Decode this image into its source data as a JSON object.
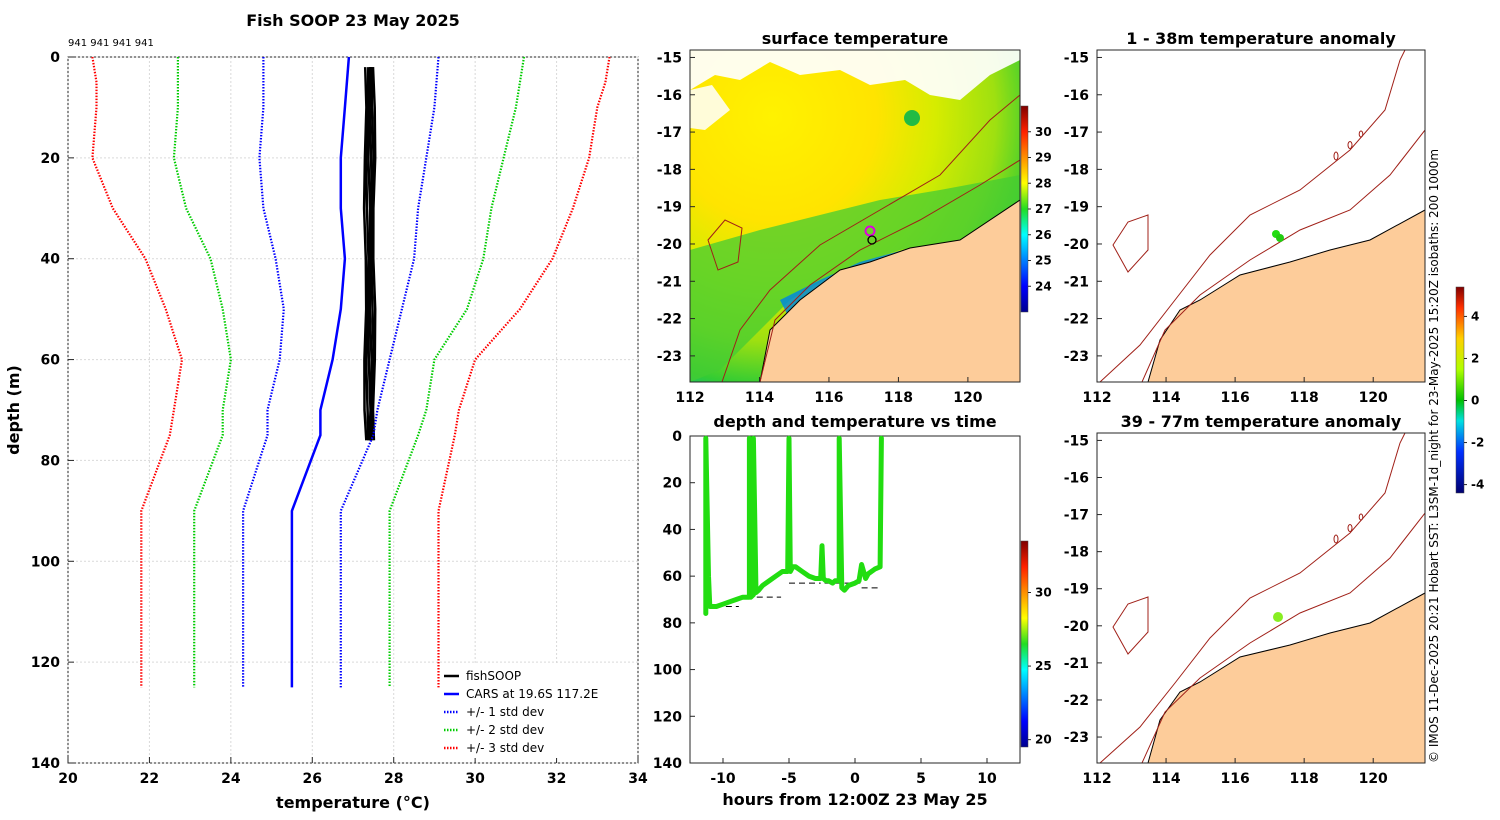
{
  "chart_data": [
    {
      "id": "profile",
      "type": "line",
      "title": "Fish SOOP 23 May 2025",
      "top_label": "941 941 941 941",
      "xlabel": "temperature (°C)",
      "ylabel": "depth (m)",
      "xlim": [
        20,
        34
      ],
      "ylim": [
        0,
        140
      ],
      "y_inverted": true,
      "xticks": [
        20,
        22,
        24,
        26,
        28,
        30,
        32,
        34
      ],
      "yticks": [
        0,
        20,
        40,
        60,
        80,
        100,
        120,
        140
      ],
      "grid": true,
      "legend_position": "bottom-right",
      "series": [
        {
          "name": "fishSOOP",
          "color": "#000000",
          "style": "solid",
          "depth": [
            2,
            10,
            20,
            30,
            40,
            50,
            60,
            70,
            76
          ],
          "temp": [
            27.4,
            27.4,
            27.4,
            27.4,
            27.4,
            27.4,
            27.4,
            27.4,
            27.4
          ]
        },
        {
          "name": "CARS at 19.6S 117.2E",
          "color": "#0000ff",
          "style": "solid",
          "depth": [
            0,
            10,
            20,
            30,
            40,
            50,
            60,
            70,
            75,
            90,
            125
          ],
          "temp": [
            26.9,
            26.8,
            26.7,
            26.7,
            26.8,
            26.7,
            26.5,
            26.2,
            26.2,
            25.5,
            25.5
          ]
        },
        {
          "name": "+/- 1 std dev",
          "color": "#0000ff",
          "style": "dotted",
          "band": true,
          "depth": [
            0,
            10,
            20,
            30,
            40,
            50,
            60,
            70,
            75,
            90,
            125
          ],
          "lower": [
            24.8,
            24.8,
            24.7,
            24.8,
            25.1,
            25.3,
            25.2,
            24.9,
            24.9,
            24.3,
            24.3
          ],
          "upper": [
            29.1,
            29.0,
            28.8,
            28.6,
            28.5,
            28.2,
            27.9,
            27.6,
            27.5,
            26.7,
            26.7
          ]
        },
        {
          "name": "+/- 2 std dev",
          "color": "#00cc00",
          "style": "dotted",
          "band": true,
          "depth": [
            0,
            10,
            20,
            30,
            40,
            50,
            60,
            70,
            75,
            90,
            125
          ],
          "lower": [
            22.7,
            22.7,
            22.6,
            22.9,
            23.5,
            23.8,
            24.0,
            23.8,
            23.8,
            23.1,
            23.1
          ],
          "upper": [
            31.2,
            31.0,
            30.7,
            30.4,
            30.2,
            29.8,
            29.0,
            28.8,
            28.6,
            27.9,
            27.9
          ]
        },
        {
          "name": "+/- 3 std dev",
          "color": "#ff0000",
          "style": "dotted",
          "band": true,
          "depth": [
            0,
            5,
            10,
            20,
            30,
            40,
            50,
            60,
            70,
            75,
            90,
            125
          ],
          "lower": [
            20.6,
            20.7,
            20.7,
            20.6,
            21.1,
            21.9,
            22.4,
            22.8,
            22.6,
            22.5,
            21.8,
            21.8
          ],
          "upper": [
            33.3,
            33.2,
            33.0,
            32.8,
            32.4,
            31.9,
            31.1,
            30.0,
            29.6,
            29.5,
            29.1,
            29.1
          ]
        }
      ]
    },
    {
      "id": "surface",
      "type": "heatmap",
      "title": "surface temperature",
      "xticks": [
        112,
        114,
        116,
        118,
        120
      ],
      "yticks": [
        -15,
        -16,
        -17,
        -18,
        -19,
        -20,
        -21,
        -22,
        -23
      ],
      "xlim": [
        112,
        121.5
      ],
      "ylim": [
        -23.7,
        -14.8
      ],
      "colorbar": {
        "min": 23,
        "max": 31,
        "ticks": [
          24,
          25,
          26,
          27,
          28,
          29,
          30
        ]
      },
      "markers": [
        {
          "lon": 117.2,
          "lat": -19.6,
          "color": "#e000e0"
        },
        {
          "lon": 117.25,
          "lat": -19.85,
          "color": "#000000"
        }
      ]
    },
    {
      "id": "depth_time",
      "type": "line",
      "title": "depth and temperature vs time",
      "xlabel": "hours from 12:00Z 23 May 25",
      "xlim": [
        -12.5,
        12.5
      ],
      "ylim": [
        0,
        140
      ],
      "y_inverted": true,
      "xticks": [
        -10,
        -5,
        0,
        5,
        10
      ],
      "yticks": [
        0,
        20,
        40,
        60,
        80,
        100,
        120,
        140
      ],
      "colorbar": {
        "min": 19.5,
        "max": 33.5,
        "ticks": [
          20,
          25,
          30
        ]
      },
      "trace_color": "#22dd11",
      "trace": {
        "t": [
          -11.3,
          -11.3,
          -11.1,
          -11.0,
          -10.5,
          -10.0,
          -9.5,
          -9.0,
          -8.5,
          -8.0,
          -8.0,
          -7.9,
          -7.7,
          -7.7,
          -7.5,
          -7.3,
          -7.0,
          -6.5,
          -6.0,
          -5.5,
          -5.1,
          -5.0,
          -4.9,
          -4.8,
          -4.7,
          -4.5,
          -4.0,
          -3.5,
          -3.0,
          -2.6,
          -2.5,
          -2.4,
          -2.2,
          -2.0,
          -1.7,
          -1.5,
          -1.2,
          -1.2,
          -1.0,
          -0.8,
          -0.5,
          0.0,
          0.3,
          0.5,
          0.8,
          1.0,
          1.5,
          1.9,
          2.0
        ],
        "d": [
          76,
          1,
          60,
          73,
          73,
          72,
          71,
          70,
          69,
          69,
          1,
          69,
          68,
          1,
          67,
          66,
          64,
          62,
          60,
          58,
          58,
          1,
          58,
          57,
          56,
          56,
          58,
          60,
          61,
          61,
          47,
          61,
          62,
          62,
          63,
          62,
          62,
          1,
          65,
          66,
          64,
          63,
          62,
          55,
          61,
          59,
          57,
          56,
          1
        ]
      },
      "ref_segments": [
        {
          "t0": -11.3,
          "t1": -8.8,
          "d": 73
        },
        {
          "t0": -8.2,
          "t1": -5.6,
          "d": 69
        },
        {
          "t0": -5.0,
          "t1": -2.6,
          "d": 63
        },
        {
          "t0": -2.3,
          "t1": 0.4,
          "d": 63
        },
        {
          "t0": 0.5,
          "t1": 2.0,
          "d": 65
        }
      ]
    },
    {
      "id": "anom1",
      "type": "heatmap",
      "title": "1 - 38m temperature anomaly",
      "xticks": [
        112,
        114,
        116,
        118,
        120
      ],
      "yticks": [
        -15,
        -16,
        -17,
        -18,
        -19,
        -20,
        -21,
        -22,
        -23
      ],
      "xlim": [
        112,
        121.5
      ],
      "ylim": [
        -23.7,
        -14.8
      ],
      "markers": [
        {
          "lon": 117.2,
          "lat": -19.7,
          "color": "#22dd11"
        },
        {
          "lon": 117.35,
          "lat": -19.8,
          "color": "#22dd11"
        }
      ]
    },
    {
      "id": "anom2",
      "type": "heatmap",
      "title": "39 - 77m temperature anomaly",
      "xticks": [
        112,
        114,
        116,
        118,
        120
      ],
      "yticks": [
        -15,
        -16,
        -17,
        -18,
        -19,
        -20,
        -21,
        -22,
        -23
      ],
      "xlim": [
        112,
        121.5
      ],
      "ylim": [
        -23.7,
        -14.8
      ],
      "markers": [
        {
          "lon": 117.25,
          "lat": -19.75,
          "color": "#88ee22"
        }
      ]
    },
    {
      "id": "anom_colorbar",
      "type": "colorbar",
      "min": -4.4,
      "max": 5.4,
      "ticks": [
        -4,
        -2,
        0,
        2,
        4
      ]
    }
  ],
  "credit": "© IMOS 11-Dec-2025 20:21 Hobart SST: L3SM-1d_night for 23-May-2025 15:20Z isobaths: 200 1000m",
  "colors": {
    "land": "#fdcc9a",
    "isobath": "#a02018",
    "grid": "#cccccc"
  }
}
